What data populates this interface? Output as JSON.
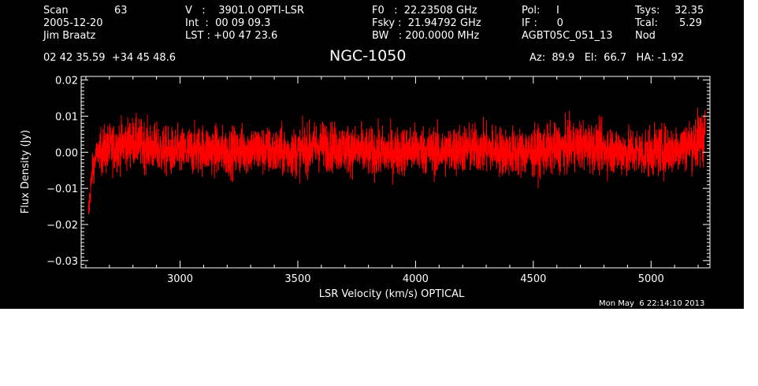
{
  "header": {
    "scan_label": "Scan",
    "scan_number": "63",
    "date": "2005-12-20",
    "observer": "Jim Braatz",
    "velocity": "V   :    3901.0 OPTI-LSR",
    "integration": "Int  :  00 09 09.3",
    "lst": "LST : +00 47 23.6",
    "f0": "F0   :  22.23508 GHz",
    "fsky": "Fsky :  21.94792 GHz",
    "bw": "BW   : 200.0000 MHz",
    "pol": "Pol:     I",
    "if_num": "IF :      0",
    "project": "AGBT05C_051_13",
    "tsys_label": "Tsys:",
    "tsys_value": "32.35",
    "tcal_label": "Tcal:",
    "tcal_value": "5.29",
    "proc": "Nod",
    "coords": "02 42 35.59  +34 45 48.6",
    "pointing": "Az:  89.9   El:  66.7   HA: -1.92",
    "timestamp": "Mon May  6 22:14:10 2013"
  },
  "chart_data": {
    "type": "line",
    "title": "NGC-1050",
    "xlabel": "LSR Velocity (km/s) OPTICAL",
    "ylabel": "Flux Density (Jy)",
    "xlim": [
      2580,
      5250
    ],
    "ylim": [
      -0.032,
      0.021
    ],
    "xticks": [
      3000,
      3500,
      4000,
      4500,
      5000
    ],
    "xtick_labels": [
      "3000",
      "3500",
      "4000",
      "4500",
      "5000"
    ],
    "yticks": [
      -0.03,
      -0.02,
      -0.01,
      0.0,
      0.01,
      0.02
    ],
    "ytick_labels": [
      "−0.03",
      "−0.02",
      "−0.01",
      "0.00",
      "0.01",
      "0.02"
    ],
    "line_color": "#ff0000",
    "series": [
      {
        "x": [
          2610,
          2620,
          2630,
          2650,
          2700,
          2750,
          2800,
          2850,
          2900,
          2950,
          3000,
          3100,
          3200,
          3300,
          3400,
          3500,
          3600,
          3700,
          3800,
          3900,
          4000,
          4100,
          4200,
          4300,
          4400,
          4500,
          4600,
          4700,
          4800,
          4900,
          5000,
          5100,
          5150,
          5200,
          5230
        ],
        "y": [
          -0.018,
          -0.01,
          -0.004,
          0.0,
          0.001,
          0.002,
          0.003,
          0.002,
          0.001,
          0.0,
          0.0,
          0.001,
          0.0,
          0.001,
          0.0,
          0.0,
          0.002,
          0.001,
          0.0,
          0.0,
          0.001,
          0.0,
          0.001,
          0.001,
          0.0,
          0.0,
          0.001,
          0.002,
          0.001,
          0.0,
          0.0,
          0.001,
          0.002,
          0.003,
          0.006
        ]
      }
    ]
  }
}
